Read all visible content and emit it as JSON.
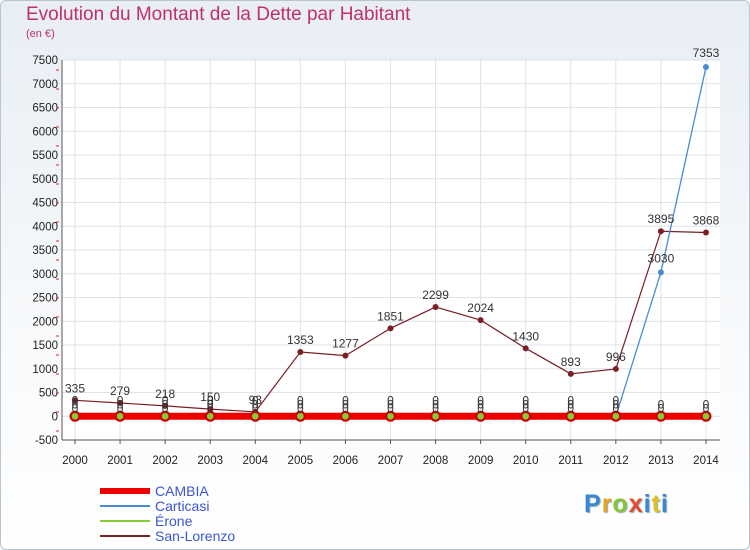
{
  "chart_data": {
    "type": "line",
    "title": "Evolution du Montant de la Dette par Habitant",
    "ylabel": "(en €)",
    "xlabel": "",
    "x": [
      "2000",
      "2001",
      "2002",
      "2003",
      "2004",
      "2005",
      "2006",
      "2007",
      "2008",
      "2009",
      "2010",
      "2011",
      "2012",
      "2013",
      "2014"
    ],
    "ylim": [
      -500,
      7500
    ],
    "yticks": [
      -500,
      0,
      500,
      1000,
      1500,
      2000,
      2500,
      3000,
      3500,
      4000,
      4500,
      5000,
      5500,
      6000,
      6500,
      7000,
      7500
    ],
    "grid": true,
    "legend_placement": "bottom-left",
    "series": [
      {
        "name": "CAMBIA",
        "color": "#ee0000",
        "values": [
          0,
          0,
          0,
          0,
          0,
          0,
          0,
          0,
          0,
          0,
          0,
          0,
          0,
          0,
          0
        ],
        "labels": [
          "0",
          "0",
          "0",
          "0",
          "0",
          "0",
          "0",
          "0",
          "0",
          "0",
          "0",
          "0",
          "0",
          "0",
          "0"
        ]
      },
      {
        "name": "Carticasi",
        "color": "#4a8cd1",
        "values": [
          0,
          0,
          0,
          0,
          0,
          0,
          0,
          0,
          0,
          0,
          0,
          0,
          0,
          3030,
          7353
        ],
        "labels": [
          "0",
          "0",
          "0",
          "0",
          "0",
          "0",
          "0",
          "0",
          "0",
          "0",
          "0",
          "0",
          "0",
          "3030",
          "7353"
        ]
      },
      {
        "name": "Érone",
        "color": "#88cc33",
        "values": [
          0,
          0,
          0,
          0,
          0,
          0,
          0,
          0,
          0,
          0,
          0,
          0,
          0,
          0,
          0
        ],
        "labels": [
          "0",
          "0",
          "0",
          "0",
          "0",
          "0",
          "0",
          "0",
          "0",
          "0",
          "0",
          "0",
          "0",
          "0",
          "0"
        ]
      },
      {
        "name": "San-Lorenzo",
        "color": "#7a1f25",
        "values": [
          335,
          279,
          218,
          150,
          93,
          1353,
          1277,
          1851,
          2299,
          2024,
          1430,
          893,
          996,
          3895,
          3868
        ],
        "labels": [
          "335",
          "279",
          "218",
          "150",
          "93",
          "1353",
          "1277",
          "1851",
          "2299",
          "2024",
          "1430",
          "893",
          "996",
          "3895",
          "3868"
        ]
      }
    ]
  },
  "logo": {
    "text": "Proxiti"
  }
}
